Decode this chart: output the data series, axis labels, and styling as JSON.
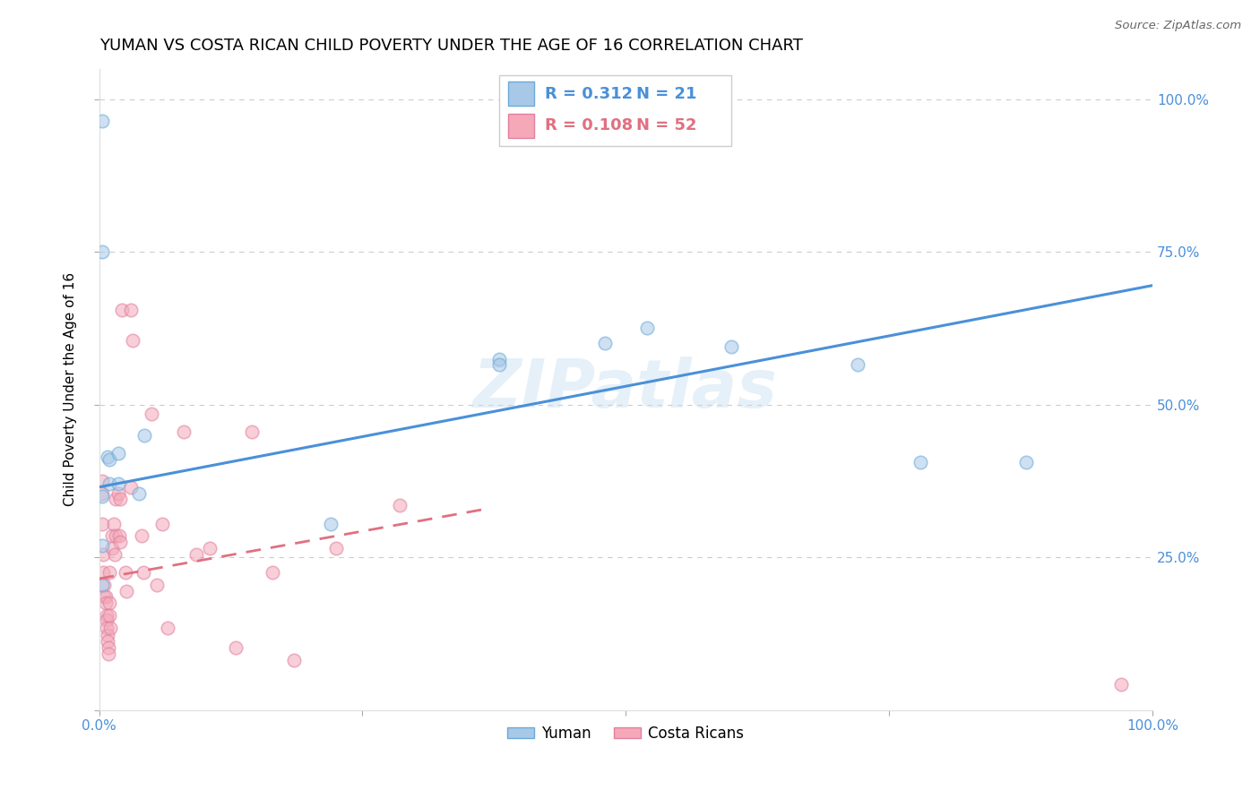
{
  "title": "YUMAN VS COSTA RICAN CHILD POVERTY UNDER THE AGE OF 16 CORRELATION CHART",
  "source": "Source: ZipAtlas.com",
  "ylabel": "Child Poverty Under the Age of 16",
  "xlim": [
    0,
    1.0
  ],
  "ylim": [
    0,
    1.0
  ],
  "watermark": "ZIPatlas",
  "blue_color": "#a8c8e8",
  "pink_color": "#f4a8b8",
  "blue_line_color": "#4a90d9",
  "pink_line_color": "#e07080",
  "blue_edge_color": "#6aaad8",
  "pink_edge_color": "#e080a0",
  "blue_scatter_x": [
    0.003,
    0.003,
    0.008,
    0.01,
    0.01,
    0.018,
    0.018,
    0.038,
    0.043,
    0.003,
    0.003,
    0.003,
    0.38,
    0.48,
    0.52,
    0.6,
    0.72,
    0.78,
    0.88,
    0.38,
    0.22
  ],
  "blue_scatter_y": [
    0.965,
    0.75,
    0.415,
    0.41,
    0.37,
    0.42,
    0.37,
    0.355,
    0.45,
    0.35,
    0.27,
    0.205,
    0.575,
    0.6,
    0.625,
    0.595,
    0.565,
    0.405,
    0.405,
    0.565,
    0.305
  ],
  "pink_scatter_x": [
    0.003,
    0.003,
    0.003,
    0.004,
    0.004,
    0.005,
    0.005,
    0.006,
    0.006,
    0.007,
    0.007,
    0.007,
    0.008,
    0.008,
    0.009,
    0.009,
    0.01,
    0.01,
    0.01,
    0.011,
    0.012,
    0.012,
    0.014,
    0.015,
    0.016,
    0.016,
    0.018,
    0.019,
    0.02,
    0.02,
    0.022,
    0.025,
    0.026,
    0.03,
    0.032,
    0.04,
    0.042,
    0.05,
    0.055,
    0.06,
    0.065,
    0.08,
    0.092,
    0.105,
    0.13,
    0.145,
    0.165,
    0.185,
    0.225,
    0.285,
    0.03,
    0.97
  ],
  "pink_scatter_y": [
    0.375,
    0.355,
    0.305,
    0.255,
    0.225,
    0.205,
    0.185,
    0.185,
    0.175,
    0.155,
    0.148,
    0.135,
    0.123,
    0.112,
    0.102,
    0.092,
    0.225,
    0.175,
    0.155,
    0.135,
    0.285,
    0.265,
    0.305,
    0.255,
    0.345,
    0.285,
    0.355,
    0.285,
    0.345,
    0.275,
    0.655,
    0.225,
    0.195,
    0.655,
    0.605,
    0.285,
    0.225,
    0.485,
    0.205,
    0.305,
    0.135,
    0.455,
    0.255,
    0.265,
    0.102,
    0.455,
    0.225,
    0.082,
    0.265,
    0.335,
    0.365,
    0.042
  ],
  "blue_trendline_x": [
    0.0,
    1.0
  ],
  "blue_trendline_y": [
    0.365,
    0.695
  ],
  "pink_trendline_x": [
    0.0,
    0.37
  ],
  "pink_trendline_y": [
    0.215,
    0.33
  ],
  "grid_color": "#cccccc",
  "bg_color": "#ffffff",
  "title_fontsize": 13,
  "axis_label_fontsize": 11,
  "tick_fontsize": 11,
  "scatter_size": 110,
  "scatter_alpha": 0.55,
  "scatter_linewidth": 1.2
}
